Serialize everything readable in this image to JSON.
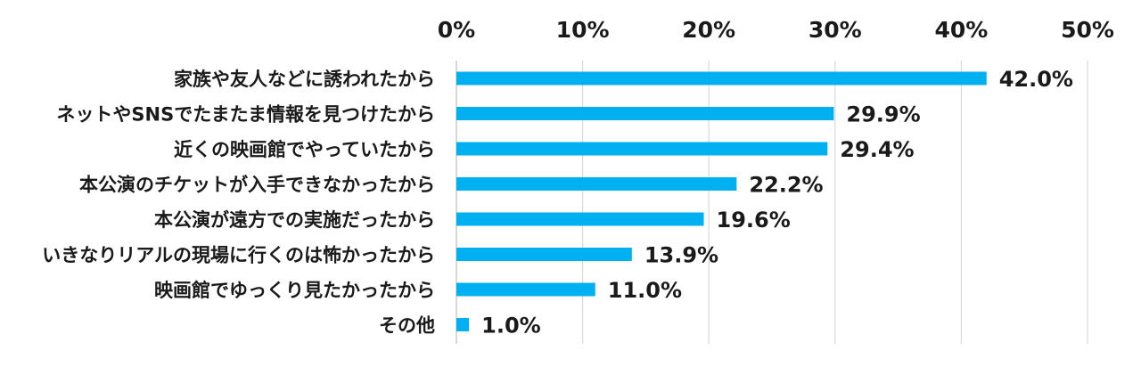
{
  "chart_data": {
    "type": "bar",
    "orientation": "horizontal",
    "title": "",
    "xlabel": "",
    "ylabel": "",
    "xlim": [
      0,
      50
    ],
    "x_ticks": [
      "0%",
      "10%",
      "20%",
      "30%",
      "40%",
      "50%"
    ],
    "x_tick_values": [
      0,
      10,
      20,
      30,
      40,
      50
    ],
    "x_axis_position": "top",
    "grid": true,
    "legend": "none",
    "bar_color": "#00b0f0",
    "categories": [
      "家族や友人などに誘われたから",
      "ネットやSNSでたまたま情報を見つけたから",
      "近くの映画館でやっていたから",
      "本公演のチケットが入手できなかったから",
      "本公演が遠方での実施だったから",
      "いきなりリアルの現場に行くのは怖かったから",
      "映画館でゆっくり見たかったから",
      "その他"
    ],
    "values": [
      42.0,
      29.9,
      29.4,
      22.2,
      19.6,
      13.9,
      11.0,
      1.0
    ],
    "value_labels": [
      "42.0%",
      "29.9%",
      "29.4%",
      "22.2%",
      "19.6%",
      "13.9%",
      "11.0%",
      "1.0%"
    ]
  }
}
